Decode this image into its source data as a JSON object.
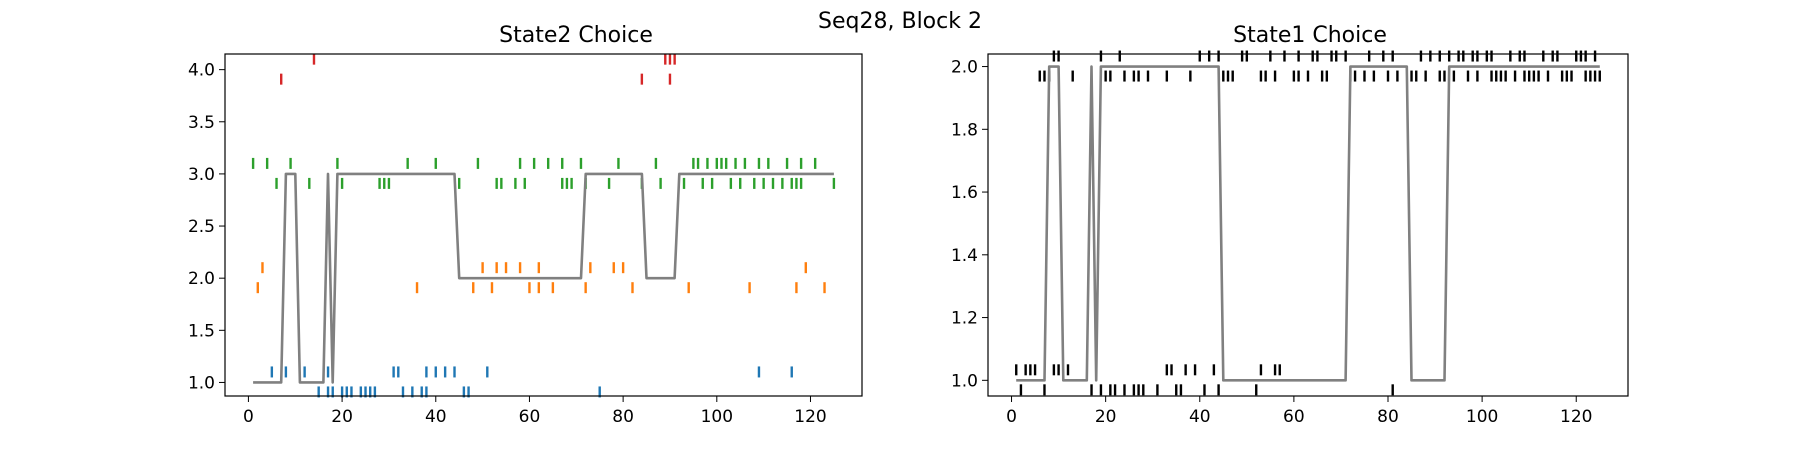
{
  "figure": {
    "suptitle": "Seq28, Block 2"
  },
  "chart_data": [
    {
      "type": "line",
      "title": "State2 Choice",
      "xlabel": "",
      "ylabel": "",
      "xlim": [
        -5,
        131
      ],
      "ylim": [
        0.87,
        4.15
      ],
      "xticks": [
        0,
        20,
        40,
        60,
        80,
        100,
        120
      ],
      "yticks": [
        1.0,
        1.5,
        2.0,
        2.5,
        3.0,
        3.5,
        4.0
      ],
      "ytick_labels": [
        "1.0",
        "1.5",
        "2.0",
        "2.5",
        "3.0",
        "3.5",
        "4.0"
      ],
      "grid": false,
      "colors": {
        "1": "#1f77b4",
        "2": "#ff7f0e",
        "3": "#2ca02c",
        "4": "#d62728",
        "line": "#808080"
      },
      "series": [
        {
          "kind": "ticks",
          "category": 1,
          "up": [
            5,
            8,
            12,
            17,
            31,
            32,
            38,
            40,
            42,
            44,
            51,
            109,
            116
          ],
          "down": [
            15,
            17,
            18,
            20,
            21,
            22,
            24,
            25,
            26,
            27,
            33,
            35,
            37,
            38,
            46,
            47,
            75
          ]
        },
        {
          "kind": "ticks",
          "category": 2,
          "up": [
            3,
            50,
            53,
            55,
            58,
            62,
            73,
            78,
            80,
            119
          ],
          "down": [
            2,
            36,
            48,
            52,
            60,
            62,
            65,
            72,
            82,
            94,
            107,
            117,
            123
          ]
        },
        {
          "kind": "ticks",
          "category": 3,
          "up": [
            1,
            4,
            9,
            19,
            34,
            40,
            49,
            58,
            61,
            64,
            67,
            71,
            79,
            87,
            95,
            96,
            98,
            100,
            101,
            102,
            104,
            106,
            109,
            111,
            115,
            118,
            121
          ],
          "down": [
            6,
            13,
            20,
            28,
            29,
            30,
            45,
            53,
            54,
            57,
            59,
            67,
            68,
            69,
            72,
            77,
            84,
            88,
            93,
            97,
            99,
            103,
            105,
            108,
            110,
            112,
            114,
            116,
            117,
            118,
            125
          ]
        },
        {
          "kind": "ticks",
          "category": 4,
          "up": [
            14,
            89,
            90,
            91
          ],
          "down": [
            7,
            84,
            90
          ]
        },
        {
          "kind": "line",
          "x": [
            1,
            6,
            7,
            8,
            9,
            10,
            11,
            12,
            13,
            14,
            15,
            16,
            17,
            18,
            19,
            44,
            45,
            71,
            72,
            84,
            85,
            91,
            92,
            125
          ],
          "y": [
            1,
            1,
            1,
            3,
            3,
            3,
            1,
            1,
            1,
            1,
            1,
            1,
            3,
            1,
            3,
            3,
            2,
            2,
            3,
            3,
            2,
            2,
            3,
            3
          ]
        }
      ]
    },
    {
      "type": "line",
      "title": "State1 Choice",
      "xlabel": "",
      "ylabel": "",
      "xlim": [
        -5,
        131
      ],
      "ylim": [
        0.95,
        2.04
      ],
      "xticks": [
        0,
        20,
        40,
        60,
        80,
        100,
        120
      ],
      "yticks": [
        1.0,
        1.2,
        1.4,
        1.6,
        1.8,
        2.0
      ],
      "ytick_labels": [
        "1.0",
        "1.2",
        "1.4",
        "1.6",
        "1.8",
        "2.0"
      ],
      "grid": false,
      "colors": {
        "marks": "#000000",
        "line": "#808080"
      },
      "series": [
        {
          "kind": "ticks",
          "category": 1,
          "up": [
            1,
            3,
            4,
            5,
            9,
            10,
            12,
            33,
            34,
            37,
            39,
            43,
            53,
            56,
            57
          ],
          "down": [
            2,
            7,
            17,
            19,
            21,
            22,
            24,
            26,
            27,
            28,
            31,
            35,
            36,
            41,
            44,
            52,
            81
          ]
        },
        {
          "kind": "ticks",
          "category": 2,
          "up": [
            9,
            10,
            19,
            23,
            40,
            42,
            44,
            49,
            50,
            55,
            58,
            61,
            64,
            65,
            68,
            69,
            71,
            76,
            79,
            81,
            87,
            89,
            91,
            93,
            95,
            96,
            98,
            99,
            101,
            102,
            106,
            108,
            109,
            113,
            115,
            116,
            120,
            121,
            122,
            124
          ],
          "down": [
            6,
            7,
            8,
            13,
            20,
            21,
            24,
            26,
            27,
            29,
            33,
            38,
            45,
            46,
            47,
            53,
            54,
            56,
            60,
            61,
            63,
            66,
            67,
            72,
            73,
            75,
            77,
            80,
            82,
            85,
            86,
            88,
            91,
            92,
            94,
            97,
            99,
            102,
            103,
            104,
            105,
            107,
            109,
            110,
            111,
            112,
            114,
            117,
            118,
            119,
            122,
            123,
            124,
            125
          ]
        },
        {
          "kind": "line",
          "x": [
            1,
            7,
            8,
            10,
            11,
            16,
            17,
            18,
            19,
            44,
            45,
            71,
            72,
            84,
            85,
            92,
            93,
            125
          ],
          "y": [
            1,
            1,
            2,
            2,
            1,
            1,
            2,
            1,
            2,
            2,
            1,
            1,
            2,
            2,
            1,
            1,
            2,
            2
          ]
        }
      ]
    }
  ]
}
